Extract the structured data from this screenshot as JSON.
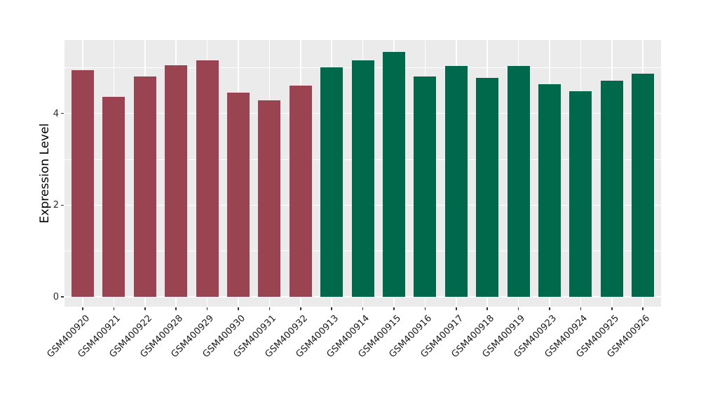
{
  "chart_data": {
    "type": "bar",
    "title": "",
    "xlabel": "",
    "ylabel": "Expression Level",
    "categories": [
      "GSM400920",
      "GSM400921",
      "GSM400922",
      "GSM400928",
      "GSM400929",
      "GSM400930",
      "GSM400931",
      "GSM400932",
      "GSM400913",
      "GSM400914",
      "GSM400915",
      "GSM400916",
      "GSM400917",
      "GSM400918",
      "GSM400919",
      "GSM400923",
      "GSM400924",
      "GSM400925",
      "GSM400926"
    ],
    "values": [
      4.95,
      4.36,
      4.8,
      5.05,
      5.16,
      4.45,
      4.28,
      4.61,
      5.0,
      5.16,
      5.34,
      4.81,
      5.03,
      4.78,
      5.04,
      4.64,
      4.48,
      4.71,
      4.86
    ],
    "bar_groups": [
      0,
      0,
      0,
      0,
      0,
      0,
      0,
      0,
      1,
      1,
      1,
      1,
      1,
      1,
      1,
      1,
      1,
      1,
      1
    ],
    "group_colors": [
      "#9A4452",
      "#00684B"
    ],
    "ylim": [
      0,
      5.56
    ],
    "yticks_major": [
      0,
      2,
      4
    ],
    "yticks_minor": [
      1,
      3,
      5
    ],
    "ytick_labels": [
      "0",
      "2",
      "4"
    ],
    "grid": "on",
    "legend": "none",
    "panel_bg": "#EBEBEB",
    "grid_color": "#FFFFFF",
    "tick_color": "#333333"
  }
}
